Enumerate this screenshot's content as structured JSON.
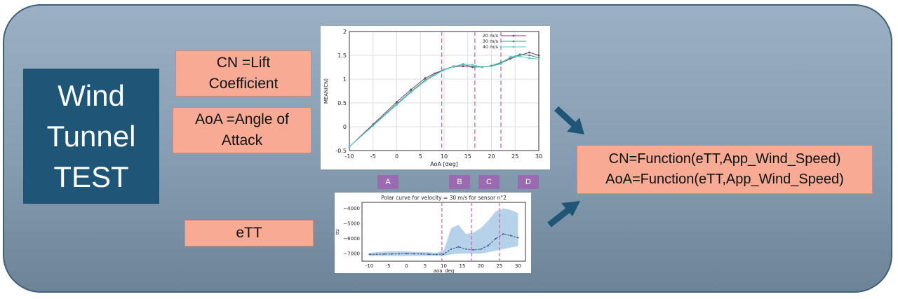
{
  "title_lines": [
    "Wind",
    "Tunnel",
    "TEST"
  ],
  "labels": {
    "cn": [
      "CN =Lift",
      "Coefficient"
    ],
    "aoa": [
      "AoA =Angle of",
      "Attack"
    ],
    "ett": "eTT"
  },
  "regions": [
    "A",
    "B",
    "C",
    "D"
  ],
  "result_lines": [
    "CN=Function(eTT,App_Wind_Speed)",
    "AoA=Function(eTT,App_Wind_Speed)"
  ],
  "colors": {
    "panel": "#8ea3b5",
    "title_box": "#1f5677",
    "label_box": "#f7aa94",
    "arrow": "#1f5677",
    "region": "#9a6bb1"
  },
  "chart_data": [
    {
      "type": "line",
      "xlabel": "AoA [deg]",
      "ylabel": "MEAN(CN)",
      "xlim": [
        -10,
        30
      ],
      "ylim": [
        -0.5,
        2
      ],
      "xticks": [
        -10,
        -5,
        0,
        5,
        10,
        15,
        20,
        25,
        30
      ],
      "yticks": [
        -0.5,
        0,
        0.5,
        1,
        1.5,
        2
      ],
      "grid": true,
      "legend": "top-right",
      "vlines": [
        9.5,
        16.5,
        22
      ],
      "x": [
        -10,
        -5,
        0,
        3,
        6,
        8,
        10,
        12,
        14,
        16,
        18,
        20,
        22,
        24,
        26,
        28,
        30
      ],
      "series": [
        {
          "name": "20 m/s",
          "color": "#7a3b6e",
          "values": [
            -0.42,
            0.05,
            0.52,
            0.78,
            1.02,
            1.12,
            1.2,
            1.26,
            1.27,
            1.25,
            1.26,
            1.28,
            1.33,
            1.43,
            1.5,
            1.56,
            1.5
          ]
        },
        {
          "name": "30 m/s",
          "color": "#3a9a78",
          "values": [
            -0.42,
            0.03,
            0.48,
            0.74,
            0.98,
            1.1,
            1.2,
            1.27,
            1.3,
            1.27,
            1.25,
            1.28,
            1.35,
            1.45,
            1.52,
            1.5,
            1.45
          ]
        },
        {
          "name": "40 m/s",
          "color": "#5cc8d0",
          "values": [
            -0.42,
            0.02,
            0.46,
            0.72,
            0.96,
            1.08,
            1.19,
            1.26,
            1.32,
            1.3,
            1.26,
            1.27,
            1.32,
            1.47,
            1.48,
            1.44,
            1.42
          ]
        }
      ]
    },
    {
      "type": "line",
      "title": "Polar curve for velocity = 30 m/s for sensor n°2",
      "xlabel": "aoa_deg",
      "ylabel": "ttz",
      "xlim": [
        -12,
        32
      ],
      "ylim": [
        -7500,
        -3600
      ],
      "xticks": [
        -10,
        -5,
        0,
        5,
        10,
        15,
        20,
        25,
        30
      ],
      "yticks": [
        -4000,
        -5000,
        -6000,
        -7000
      ],
      "vlines": [
        9.5,
        17.5,
        25
      ],
      "x": [
        -10,
        -8,
        -6,
        -4,
        -2,
        0,
        2,
        4,
        6,
        8,
        10,
        12,
        14,
        16,
        18,
        20,
        22,
        24,
        26,
        28,
        30
      ],
      "mean": [
        -7050,
        -7040,
        -7030,
        -7020,
        -7010,
        -7000,
        -7010,
        -7020,
        -7040,
        -7050,
        -7030,
        -6700,
        -6550,
        -6700,
        -6750,
        -6700,
        -6450,
        -6000,
        -5700,
        -5800,
        -5950
      ],
      "lower": [
        -7150,
        -7150,
        -7150,
        -7150,
        -7150,
        -7150,
        -7150,
        -7150,
        -7150,
        -7150,
        -7150,
        -7050,
        -7000,
        -7000,
        -7000,
        -7000,
        -6900,
        -6800,
        -6700,
        -6600,
        -6500
      ],
      "upper": [
        -6950,
        -6900,
        -6870,
        -6850,
        -6850,
        -6850,
        -6880,
        -6900,
        -6900,
        -6950,
        -6800,
        -5300,
        -5100,
        -5700,
        -5600,
        -5300,
        -4800,
        -4200,
        -4000,
        -4100,
        -4300
      ]
    }
  ]
}
